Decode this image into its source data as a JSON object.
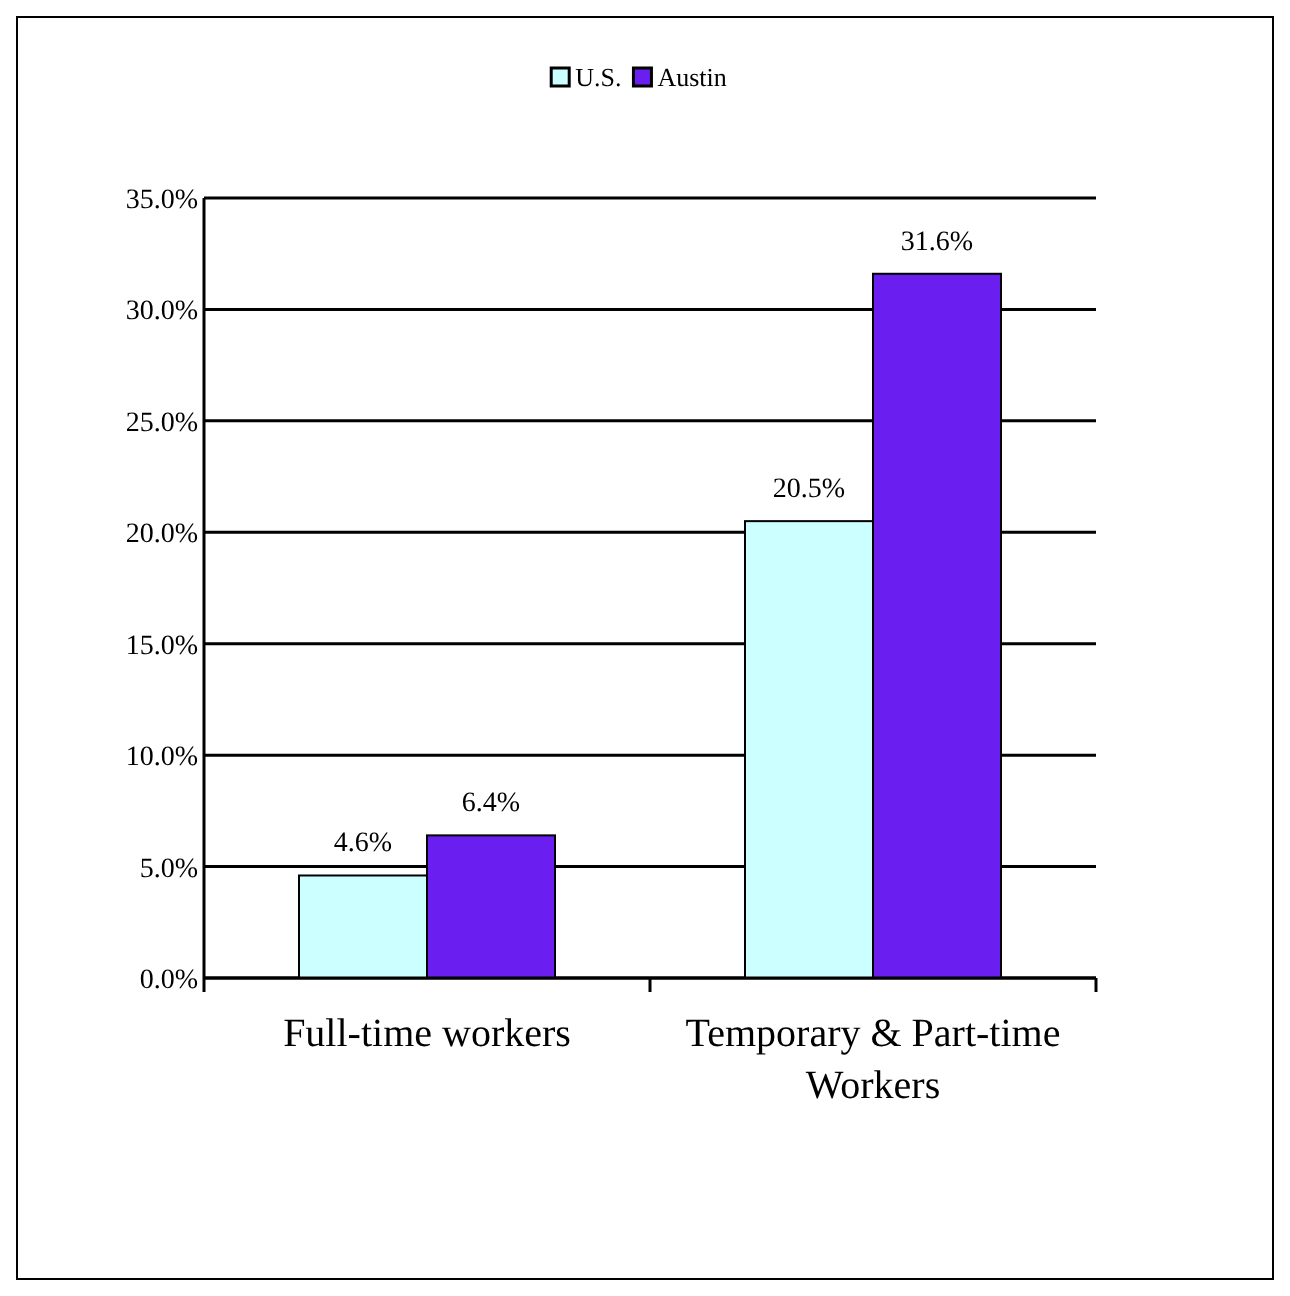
{
  "chart_data": {
    "type": "bar",
    "categories": [
      "Full-time workers",
      "Temporary & Part-time Workers"
    ],
    "series": [
      {
        "name": "U.S.",
        "color": "#ccffff",
        "values": [
          4.6,
          20.5
        ]
      },
      {
        "name": "Austin",
        "color": "#6a1ff0",
        "values": [
          6.4,
          31.6
        ]
      }
    ],
    "ylim": [
      0,
      35
    ],
    "yticks": [
      {
        "value": 0,
        "label": "0.0%"
      },
      {
        "value": 5,
        "label": "5.0%"
      },
      {
        "value": 10,
        "label": "10.0%"
      },
      {
        "value": 15,
        "label": "15.0%"
      },
      {
        "value": 20,
        "label": "20.0%"
      },
      {
        "value": 25,
        "label": "25.0%"
      },
      {
        "value": 30,
        "label": "30.0%"
      },
      {
        "value": 35,
        "label": "35.0%"
      }
    ],
    "value_labels": [
      [
        "4.6%",
        "20.5%"
      ],
      [
        "6.4%",
        "31.6%"
      ]
    ],
    "grid": "y",
    "legend": "top"
  }
}
